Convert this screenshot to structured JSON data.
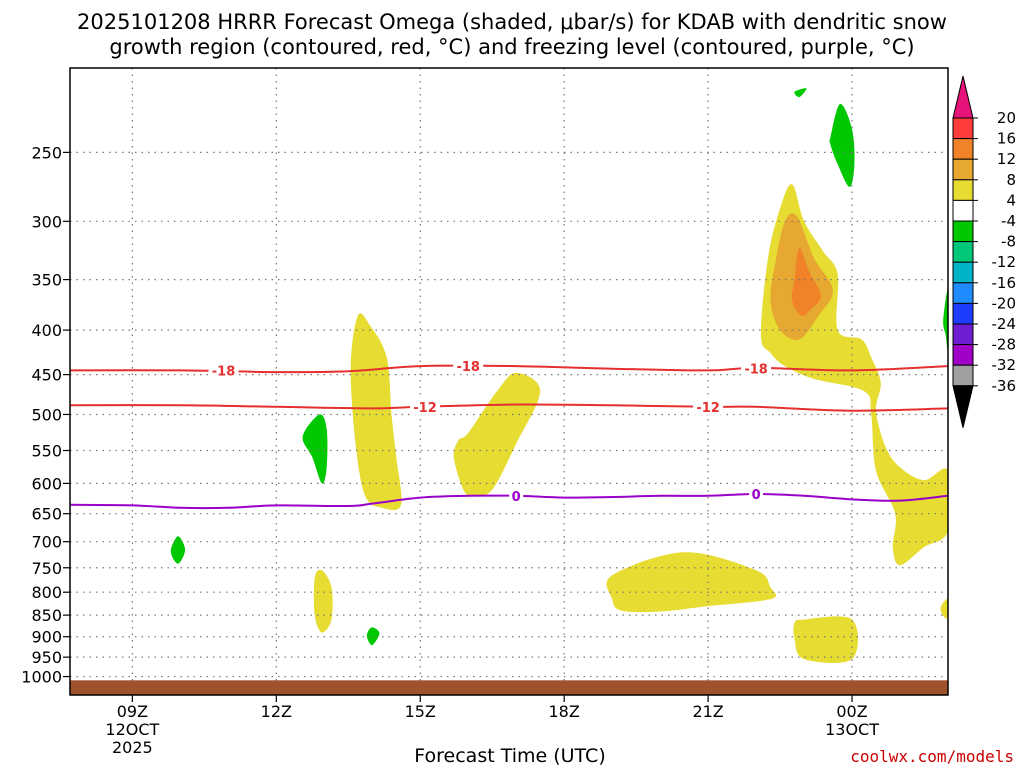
{
  "title": {
    "line1": "2025101208 HRRR Forecast Omega (shaded, μbar/s) for KDAB with dendritic snow",
    "line2": "growth region (contoured, red, °C) and freezing level (contoured, purple, °C)"
  },
  "credit": "coolwx.com/models",
  "chart_data": {
    "type": "time-height cross-section",
    "xlabel": "Forecast Time (UTC)",
    "ylabel": "",
    "xlim": [
      7.7,
      26.0
    ],
    "ylim": [
      1050,
      200
    ],
    "y_scale": "log-pressure",
    "x_ticks": [
      {
        "x": 9,
        "label": "09Z",
        "sub1": "12OCT",
        "sub2": "2025"
      },
      {
        "x": 12,
        "label": "12Z",
        "sub1": "",
        "sub2": ""
      },
      {
        "x": 15,
        "label": "15Z",
        "sub1": "",
        "sub2": ""
      },
      {
        "x": 18,
        "label": "18Z",
        "sub1": "",
        "sub2": ""
      },
      {
        "x": 21,
        "label": "21Z",
        "sub1": "",
        "sub2": ""
      },
      {
        "x": 24,
        "label": "00Z",
        "sub1": "13OCT",
        "sub2": ""
      }
    ],
    "y_ticks": [
      {
        "p": 250,
        "label": "250"
      },
      {
        "p": 300,
        "label": "300"
      },
      {
        "p": 350,
        "label": "350"
      },
      {
        "p": 400,
        "label": "400"
      },
      {
        "p": 450,
        "label": "450"
      },
      {
        "p": 500,
        "label": "500"
      },
      {
        "p": 550,
        "label": "550"
      },
      {
        "p": 600,
        "label": "600"
      },
      {
        "p": 650,
        "label": "650"
      },
      {
        "p": 700,
        "label": "700"
      },
      {
        "p": 750,
        "label": "750"
      },
      {
        "p": 800,
        "label": "800"
      },
      {
        "p": 850,
        "label": "850"
      },
      {
        "p": 900,
        "label": "900"
      },
      {
        "p": 950,
        "label": "950"
      },
      {
        "p": 1000,
        "label": "1000"
      }
    ],
    "ground": {
      "p_top": 1010,
      "color": "#a0522d"
    },
    "colorbar": {
      "labels": [
        "20",
        "16",
        "12",
        "8",
        "4",
        "-4",
        "-8",
        "-12",
        "-16",
        "-20",
        "-24",
        "-28",
        "-32",
        "-36"
      ],
      "bins": [
        {
          "color": "#ff3c3c",
          "range": "16 to 20"
        },
        {
          "color": "#f08228",
          "range": "12 to 16"
        },
        {
          "color": "#e6a830",
          "range": "8 to 12"
        },
        {
          "color": "#e6dc32",
          "range": "4 to 8"
        },
        {
          "color": "#ffffff",
          "range": "-4 to 4"
        },
        {
          "color": "#00c800",
          "range": "-8 to -4"
        },
        {
          "color": "#00c878",
          "range": "-12 to -8"
        },
        {
          "color": "#00b4c8",
          "range": "-16 to -12"
        },
        {
          "color": "#1e8cff",
          "range": "-20 to -16"
        },
        {
          "color": "#1e3cff",
          "range": "-24 to -20"
        },
        {
          "color": "#6e1ed2",
          "range": "-28 to -24"
        },
        {
          "color": "#a000c8",
          "range": "-32 to -28"
        },
        {
          "color": "#a0a0a0",
          "range": "-36 to -32"
        }
      ],
      "top_arrow_color": "#e6147a",
      "bottom_arrow_color": "#000000"
    },
    "omega_fields": [
      {
        "level": 4,
        "color": "#e6dc32",
        "points": [
          [
            13.7,
            385
          ],
          [
            13.95,
            395
          ],
          [
            14.3,
            430
          ],
          [
            14.4,
            500
          ],
          [
            14.5,
            560
          ],
          [
            14.6,
            635
          ],
          [
            14.2,
            640
          ],
          [
            13.85,
            620
          ],
          [
            13.65,
            540
          ],
          [
            13.55,
            440
          ]
        ]
      },
      {
        "level": 4,
        "color": "#e6dc32",
        "points": [
          [
            16.0,
            525
          ],
          [
            16.6,
            470
          ],
          [
            17.0,
            448
          ],
          [
            17.5,
            470
          ],
          [
            17.0,
            540
          ],
          [
            16.5,
            610
          ],
          [
            16.1,
            620
          ],
          [
            15.9,
            610
          ],
          [
            15.7,
            560
          ],
          [
            15.8,
            535
          ]
        ]
      },
      {
        "level": 4,
        "color": "#e6dc32",
        "points": [
          [
            22.1,
            405
          ],
          [
            22.25,
            330
          ],
          [
            22.5,
            290
          ],
          [
            22.75,
            272
          ],
          [
            23.0,
            300
          ],
          [
            23.4,
            325
          ],
          [
            23.7,
            345
          ],
          [
            23.7,
            400
          ],
          [
            24.2,
            410
          ],
          [
            24.4,
            430
          ],
          [
            24.6,
            460
          ],
          [
            24.5,
            495
          ],
          [
            24.7,
            545
          ],
          [
            25.0,
            575
          ],
          [
            25.5,
            595
          ],
          [
            26.0,
            580
          ],
          [
            26.0,
            680
          ],
          [
            25.5,
            710
          ],
          [
            25.0,
            745
          ],
          [
            24.85,
            710
          ],
          [
            24.9,
            650
          ],
          [
            24.5,
            580
          ],
          [
            24.4,
            500
          ],
          [
            24.25,
            470
          ],
          [
            23.2,
            455
          ],
          [
            22.6,
            440
          ],
          [
            22.3,
            425
          ]
        ]
      },
      {
        "level": 4,
        "color": "#e6dc32",
        "points": [
          [
            19.0,
            765
          ],
          [
            20.5,
            720
          ],
          [
            22.0,
            755
          ],
          [
            22.3,
            790
          ],
          [
            22.4,
            810
          ],
          [
            22.0,
            820
          ],
          [
            21.0,
            830
          ],
          [
            20.0,
            842
          ],
          [
            19.2,
            840
          ],
          [
            19.0,
            815
          ]
        ]
      },
      {
        "level": 4,
        "color": "#e6dc32",
        "points": [
          [
            22.8,
            868
          ],
          [
            23.0,
            860
          ],
          [
            24.0,
            860
          ],
          [
            24.0,
            955
          ],
          [
            23.0,
            955
          ],
          [
            22.8,
            905
          ]
        ]
      },
      {
        "level": 4,
        "color": "#e6dc32",
        "points": [
          [
            12.8,
            770
          ],
          [
            12.95,
            755
          ],
          [
            13.15,
            790
          ],
          [
            13.15,
            860
          ],
          [
            12.95,
            890
          ],
          [
            12.8,
            850
          ]
        ]
      },
      {
        "level": 4,
        "color": "#e6dc32",
        "points": [
          [
            25.85,
            832
          ],
          [
            26.0,
            815
          ],
          [
            26.0,
            855
          ],
          [
            25.9,
            852
          ]
        ]
      },
      {
        "level": 8,
        "color": "#e6a830",
        "points": [
          [
            22.4,
            335
          ],
          [
            22.6,
            300
          ],
          [
            22.85,
            296
          ],
          [
            23.2,
            330
          ],
          [
            23.6,
            360
          ],
          [
            23.3,
            385
          ],
          [
            22.9,
            410
          ],
          [
            22.5,
            400
          ],
          [
            22.3,
            370
          ]
        ]
      },
      {
        "level": 12,
        "color": "#f08228",
        "points": [
          [
            22.8,
            350
          ],
          [
            22.9,
            322
          ],
          [
            23.1,
            342
          ],
          [
            23.35,
            365
          ],
          [
            23.15,
            378
          ],
          [
            22.95,
            385
          ],
          [
            22.75,
            370
          ]
        ]
      },
      {
        "level": -4,
        "color": "#00c800",
        "points": [
          [
            12.55,
            530
          ],
          [
            12.9,
            500
          ],
          [
            13.05,
            520
          ],
          [
            13.05,
            575
          ],
          [
            12.95,
            600
          ],
          [
            12.75,
            560
          ]
        ]
      },
      {
        "level": -4,
        "color": "#00c800",
        "points": [
          [
            9.8,
            718
          ],
          [
            9.95,
            690
          ],
          [
            10.1,
            715
          ],
          [
            9.95,
            742
          ]
        ]
      },
      {
        "level": -4,
        "color": "#00c800",
        "points": [
          [
            13.9,
            890
          ],
          [
            14.0,
            878
          ],
          [
            14.15,
            892
          ],
          [
            14.0,
            920
          ],
          [
            13.9,
            905
          ]
        ]
      },
      {
        "level": -4,
        "color": "#00c800",
        "points": [
          [
            23.55,
            240
          ],
          [
            23.75,
            220
          ],
          [
            24.0,
            235
          ],
          [
            24.05,
            258
          ],
          [
            23.95,
            274
          ],
          [
            23.7,
            258
          ],
          [
            23.55,
            245
          ]
        ]
      },
      {
        "level": -4,
        "color": "#00c800",
        "points": [
          [
            22.8,
            213
          ],
          [
            23.05,
            211
          ],
          [
            22.9,
            216
          ]
        ]
      },
      {
        "level": -4,
        "color": "#00c800",
        "points": [
          [
            25.9,
            390
          ],
          [
            26.0,
            360
          ],
          [
            26.0,
            420
          ],
          [
            25.95,
            405
          ]
        ]
      }
    ],
    "isotherms": [
      {
        "temp": -18,
        "color": "#e53030",
        "points": [
          [
            7.7,
            445
          ],
          [
            10,
            445
          ],
          [
            12,
            447
          ],
          [
            13.5,
            446
          ],
          [
            15,
            440
          ],
          [
            17,
            440
          ],
          [
            19,
            443
          ],
          [
            21,
            445
          ],
          [
            22,
            442
          ],
          [
            24,
            445
          ],
          [
            26,
            440
          ]
        ],
        "labels": [
          [
            10.9,
            445
          ],
          [
            16.0,
            440
          ],
          [
            22.0,
            443
          ]
        ]
      },
      {
        "temp": -12,
        "color": "#e53030",
        "points": [
          [
            7.7,
            488
          ],
          [
            10,
            488
          ],
          [
            12,
            490
          ],
          [
            14,
            492
          ],
          [
            15,
            490
          ],
          [
            17,
            487
          ],
          [
            19,
            488
          ],
          [
            21,
            490
          ],
          [
            22,
            490
          ],
          [
            24,
            495
          ],
          [
            26,
            492
          ]
        ],
        "labels": [
          [
            15.1,
            490
          ],
          [
            21.0,
            490
          ]
        ]
      },
      {
        "temp": 0,
        "color": "#9b00c8",
        "points": [
          [
            7.7,
            635
          ],
          [
            9,
            636
          ],
          [
            10,
            640
          ],
          [
            11,
            640
          ],
          [
            12,
            636
          ],
          [
            13.5,
            637
          ],
          [
            14,
            633
          ],
          [
            15,
            623
          ],
          [
            16,
            620
          ],
          [
            17,
            620
          ],
          [
            18,
            623
          ],
          [
            19,
            622
          ],
          [
            20,
            620
          ],
          [
            21,
            620
          ],
          [
            22,
            617
          ],
          [
            23,
            620
          ],
          [
            24,
            626
          ],
          [
            25,
            628
          ],
          [
            26,
            620
          ]
        ],
        "labels": [
          [
            17.0,
            620
          ],
          [
            22.0,
            617
          ]
        ]
      }
    ]
  }
}
